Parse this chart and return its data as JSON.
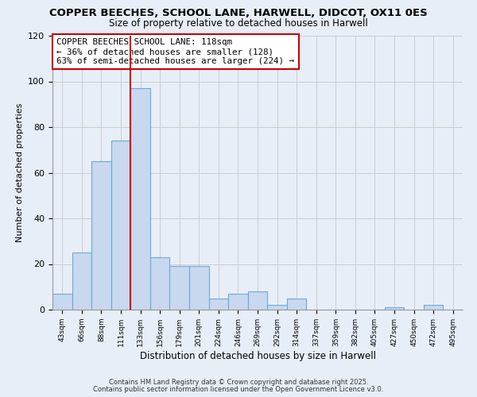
{
  "title": "COPPER BEECHES, SCHOOL LANE, HARWELL, DIDCOT, OX11 0ES",
  "subtitle": "Size of property relative to detached houses in Harwell",
  "xlabel": "Distribution of detached houses by size in Harwell",
  "ylabel": "Number of detached properties",
  "bar_labels": [
    "43sqm",
    "66sqm",
    "88sqm",
    "111sqm",
    "133sqm",
    "156sqm",
    "179sqm",
    "201sqm",
    "224sqm",
    "246sqm",
    "269sqm",
    "292sqm",
    "314sqm",
    "337sqm",
    "359sqm",
    "382sqm",
    "405sqm",
    "427sqm",
    "450sqm",
    "472sqm",
    "495sqm"
  ],
  "bar_values": [
    7,
    25,
    65,
    74,
    97,
    23,
    19,
    19,
    5,
    7,
    8,
    2,
    5,
    0,
    0,
    0,
    0,
    1,
    0,
    2,
    0
  ],
  "bar_color": "#c8d8ee",
  "bar_edge_color": "#6aaad4",
  "vline_x": 3.5,
  "vline_color": "#cc0000",
  "annotation_title": "COPPER BEECHES SCHOOL LANE: 118sqm",
  "annotation_line1": "← 36% of detached houses are smaller (128)",
  "annotation_line2": "63% of semi-detached houses are larger (224) →",
  "annotation_box_color": "#ffffff",
  "annotation_box_edge": "#cc0000",
  "ylim": [
    0,
    120
  ],
  "yticks": [
    0,
    20,
    40,
    60,
    80,
    100,
    120
  ],
  "grid_color": "#cccccc",
  "footnote1": "Contains HM Land Registry data © Crown copyright and database right 2025.",
  "footnote2": "Contains public sector information licensed under the Open Government Licence v3.0.",
  "background_color": "#e8eef8"
}
